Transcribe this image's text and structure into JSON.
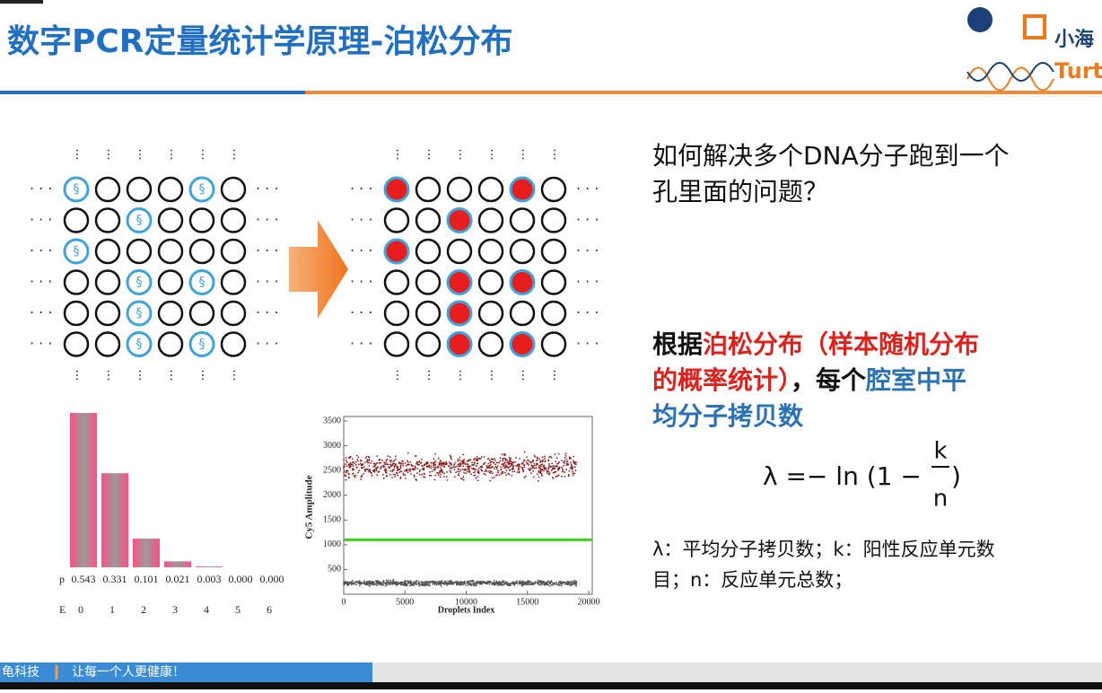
{
  "header": {
    "title": "数字PCR定量统计学原理-泊松分布",
    "logo_cn": "小海",
    "logo_en": "Turt"
  },
  "question": [
    "如何解决多个DNA分子跑到一个",
    "孔里面的问题？"
  ],
  "paragraph": [
    [
      {
        "text": "根据",
        "color": "#111111"
      },
      {
        "text": "泊松分布（样本随机分布",
        "color": "#e0201b"
      }
    ],
    [
      {
        "text": "的概率统计）",
        "color": "#e0201b"
      },
      {
        "text": "，每个",
        "color": "#111111"
      },
      {
        "text": "腔室中平",
        "color": "#2a72b5"
      }
    ],
    [
      {
        "text": "均分子拷贝数",
        "color": "#2a72b5"
      }
    ]
  ],
  "formula": {
    "lhs": "λ =− ln (1 −",
    "numerator": "k",
    "denominator": "n",
    "close": ")"
  },
  "notes": [
    "λ：平均分子拷贝数；k：阳性反应单元数",
    "目；n：反应单元总数；"
  ],
  "footer": {
    "company": "龟科技",
    "slogan": "让每一个人更健康！"
  },
  "chart_data": [
    {
      "type": "bar",
      "p_label": "p",
      "e_label": "E",
      "categories": [
        "0",
        "1",
        "2",
        "3",
        "4",
        "5",
        "6"
      ],
      "values": [
        0.543,
        0.331,
        0.101,
        0.021,
        0.003,
        0.0,
        0.0
      ],
      "value_labels": [
        "0.543",
        "0.331",
        "0.101",
        "0.021",
        "0.003",
        "0.000",
        "0.000"
      ],
      "ylim": [
        0,
        0.543
      ]
    },
    {
      "type": "scatter",
      "ylabel": "Cy5 Amplitude",
      "xlabel": "Droplets Index",
      "xlim": [
        0,
        20000
      ],
      "ylim": [
        0,
        3500
      ],
      "xticks": [
        0,
        5000,
        10000,
        15000,
        20000
      ],
      "yticks": [
        500,
        1000,
        1500,
        2000,
        2500,
        3000,
        3500
      ],
      "threshold": 1100,
      "threshold_color": "#3fcf1f",
      "clusters": [
        {
          "xlim": [
            0,
            19000
          ],
          "ylim": [
            2250,
            2900
          ],
          "color": "#8b1a1a"
        },
        {
          "xlim": [
            0,
            19000
          ],
          "ylim": [
            150,
            300
          ],
          "color": "#555555"
        }
      ]
    }
  ]
}
